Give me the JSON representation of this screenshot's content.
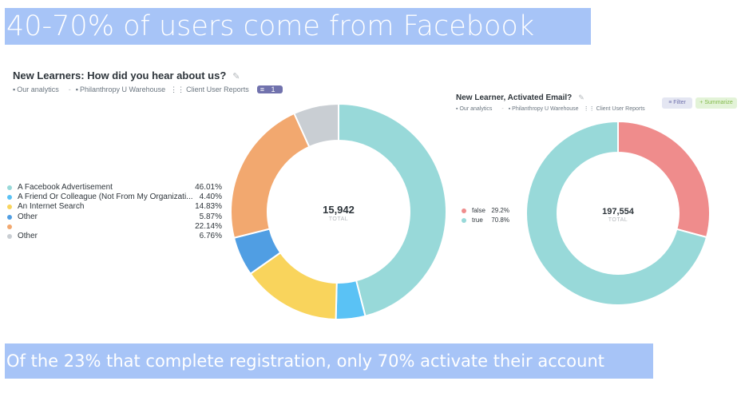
{
  "headline": "40-70% of users come from Facebook",
  "footer": "Of the 23% that complete registration, only 70% activate their account",
  "left_panel": {
    "title": "New Learners: How did you hear about us?",
    "crumbs": [
      "Our analytics",
      "Philanthropy U Warehouse",
      "Client User Reports"
    ],
    "filter_count": "1",
    "total_value": "15,942",
    "total_label": "TOTAL"
  },
  "right_panel": {
    "title": "New Learner, Activated Email?",
    "crumbs": [
      "Our analytics",
      "Philanthropy U Warehouse",
      "Client User Reports"
    ],
    "filter_label": "Filter",
    "summarize_label": "Summarize",
    "total_value": "197,554",
    "total_label": "TOTAL"
  },
  "chart_data": [
    {
      "type": "pie",
      "title": "New Learners: How did you hear about us?",
      "categories": [
        "A Facebook Advertisement",
        "A Friend Or Colleague (Not From My Organizati...",
        "An Internet Search",
        "Other",
        "",
        "Other"
      ],
      "value_labels": [
        "46.01%",
        "4.40%",
        "14.83%",
        "5.87%",
        "22.14%",
        "6.76%"
      ],
      "values": [
        46.01,
        4.4,
        14.83,
        5.87,
        22.14,
        6.76
      ],
      "colors": [
        "#98d9d9",
        "#5ac2f5",
        "#f9d45c",
        "#509ee3",
        "#f2a86f",
        "#c9ced3"
      ],
      "total": 15942,
      "legend_position": "left"
    },
    {
      "type": "pie",
      "title": "New Learner, Activated Email?",
      "categories": [
        "false",
        "true"
      ],
      "value_labels": [
        "29.2%",
        "70.8%"
      ],
      "values": [
        29.2,
        70.8
      ],
      "colors": [
        "#ef8c8c",
        "#98d9d9"
      ],
      "total": 197554,
      "legend_position": "left"
    }
  ]
}
